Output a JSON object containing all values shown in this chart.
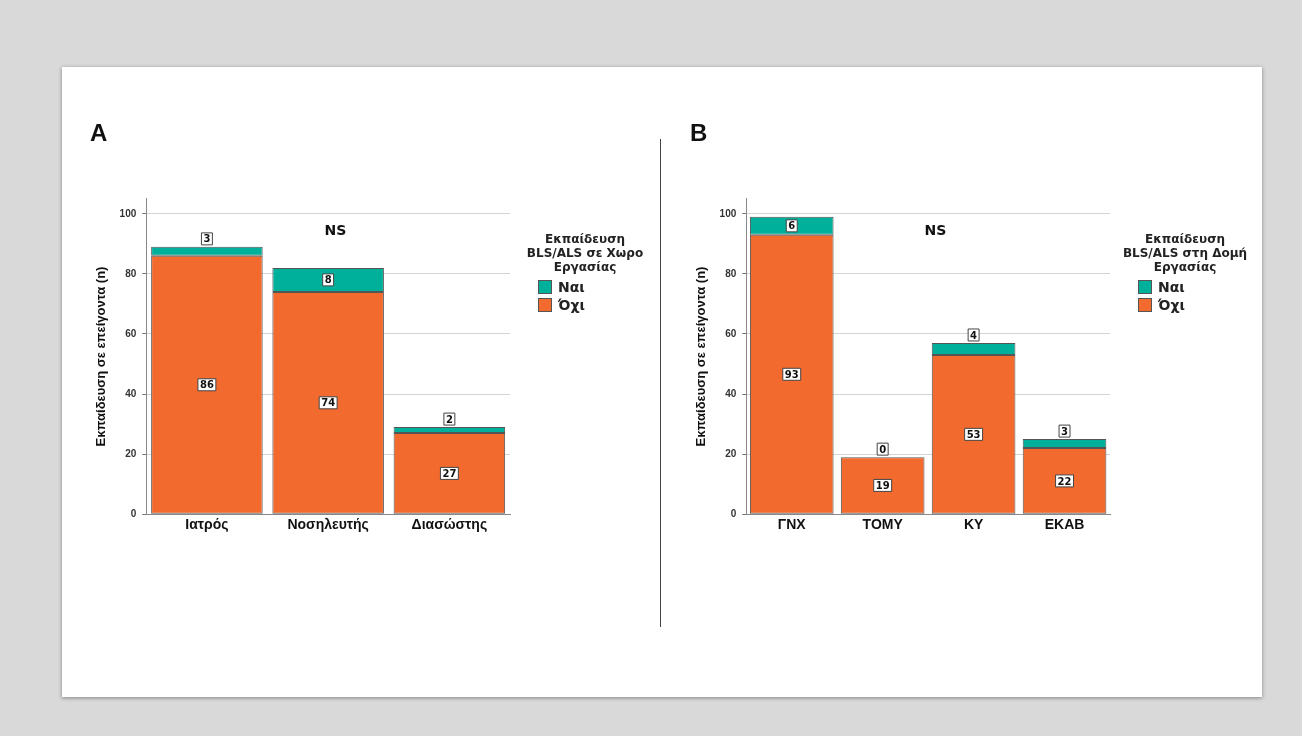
{
  "chart_data": [
    {
      "type": "bar",
      "title": "A",
      "ylabel": "Εκπαίδευση σε επείγοντα (n)",
      "legend_title": "Εκπαίδευση BLS/ALS σε Χωρο Εργασίας",
      "categories": [
        "Ιατρός",
        "Νοσηλευτής",
        "Διασώστης"
      ],
      "stacked": true,
      "data_labels": true,
      "grid": "y",
      "legend": "right",
      "ylim": [
        0,
        105
      ],
      "yticks": [
        0,
        20,
        40,
        60,
        80,
        100
      ],
      "annotations": [
        "NS"
      ],
      "series": [
        {
          "name": "Όχι",
          "color": "#f26a2e",
          "values": [
            86,
            74,
            27
          ]
        },
        {
          "name": "Ναι",
          "color": "#00b09b",
          "values": [
            3,
            8,
            2
          ]
        }
      ]
    },
    {
      "type": "bar",
      "title": "B",
      "ylabel": "Εκπαίδευση σε επείγοντα (n)",
      "legend_title": "Εκπαίδευση BLS/ALS στη Δομή Εργασίας",
      "categories": [
        "ΓΝΧ",
        "ΤΟΜΥ",
        "ΚΥ",
        "ΕΚΑΒ"
      ],
      "stacked": true,
      "data_labels": true,
      "grid": "y",
      "legend": "right",
      "ylim": [
        0,
        105
      ],
      "yticks": [
        0,
        20,
        40,
        60,
        80,
        100
      ],
      "annotations": [
        "NS"
      ],
      "series": [
        {
          "name": "Όχι",
          "color": "#f26a2e",
          "values": [
            93,
            19,
            53,
            22
          ]
        },
        {
          "name": "Ναι",
          "color": "#00b09b",
          "values": [
            6,
            0,
            4,
            3
          ]
        }
      ]
    }
  ]
}
